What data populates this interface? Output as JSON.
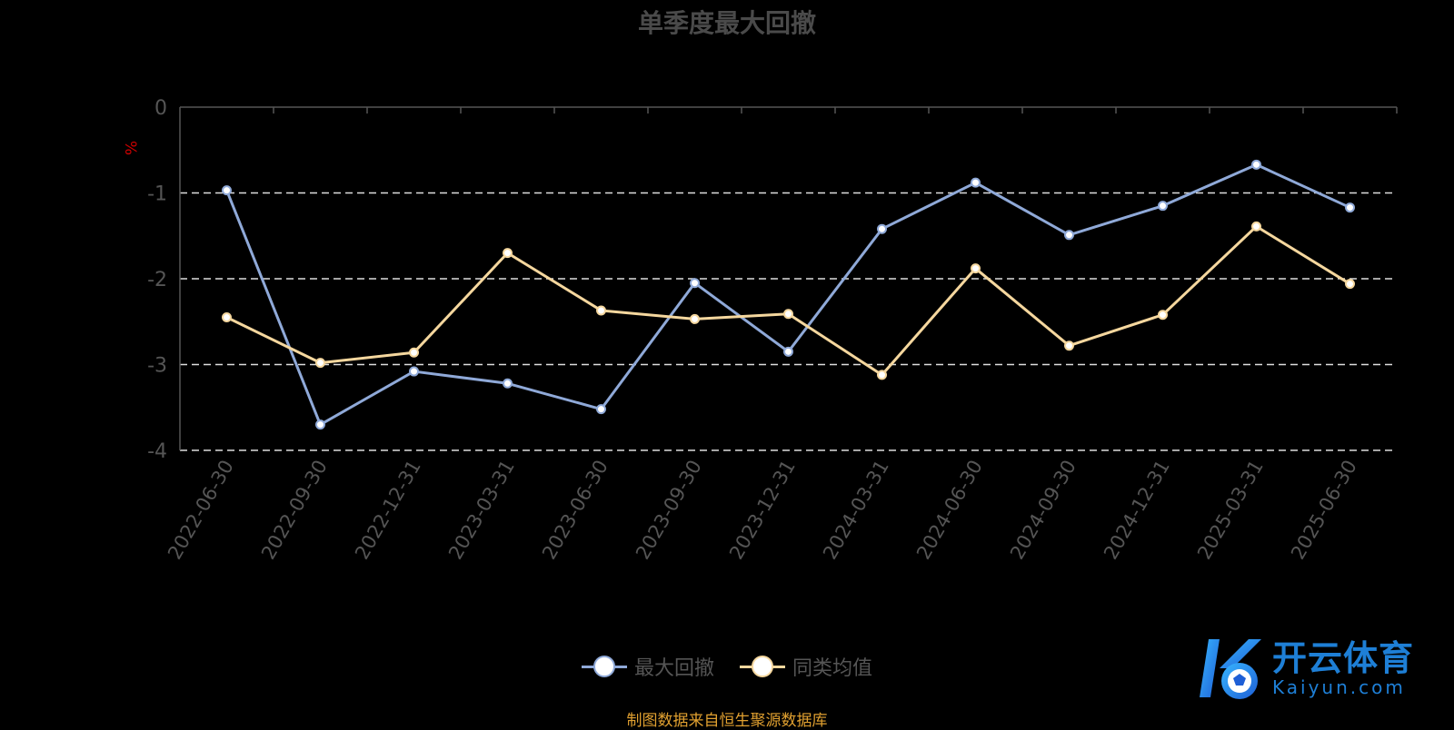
{
  "chart_data": {
    "type": "line",
    "title": "单季度最大回撤",
    "ylabel": "%",
    "ylim": [
      -4,
      0
    ],
    "yticks": [
      0,
      -1,
      -2,
      -3,
      -4
    ],
    "grid": "horizontal dashed",
    "legend_position": "bottom-center",
    "categories": [
      "2022-06-30",
      "2022-09-30",
      "2022-12-31",
      "2023-03-31",
      "2023-06-30",
      "2023-09-30",
      "2023-12-31",
      "2024-03-31",
      "2024-06-30",
      "2024-09-30",
      "2024-12-31",
      "2025-03-31",
      "2025-06-30"
    ],
    "series": [
      {
        "name": "最大回撤",
        "color": "#8fa9d8",
        "values": [
          -0.97,
          -3.7,
          -3.08,
          -3.22,
          -3.52,
          -2.05,
          -2.85,
          -1.42,
          -0.88,
          -1.49,
          -1.15,
          -0.67,
          -1.17
        ]
      },
      {
        "name": "同类均值",
        "color": "#f5d79e",
        "values": [
          -2.45,
          -2.98,
          -2.86,
          -1.7,
          -2.37,
          -2.47,
          -2.41,
          -3.12,
          -1.88,
          -2.78,
          -2.42,
          -1.39,
          -2.06
        ]
      }
    ]
  },
  "source_note": "制图数据来自恒生聚源数据库",
  "watermark": {
    "brand_cn": "开云体育",
    "brand_en": "Kaiyun.com",
    "logo_icon": "kaiyun-logo-icon",
    "colors": [
      "#1e7fd6",
      "#38b6ff"
    ]
  },
  "colors": {
    "background": "#000000",
    "axis": "#555555",
    "grid": "#dddddd",
    "title": "#4a4a4a",
    "ylabel": "#cc0000",
    "note": "#e0a030"
  }
}
